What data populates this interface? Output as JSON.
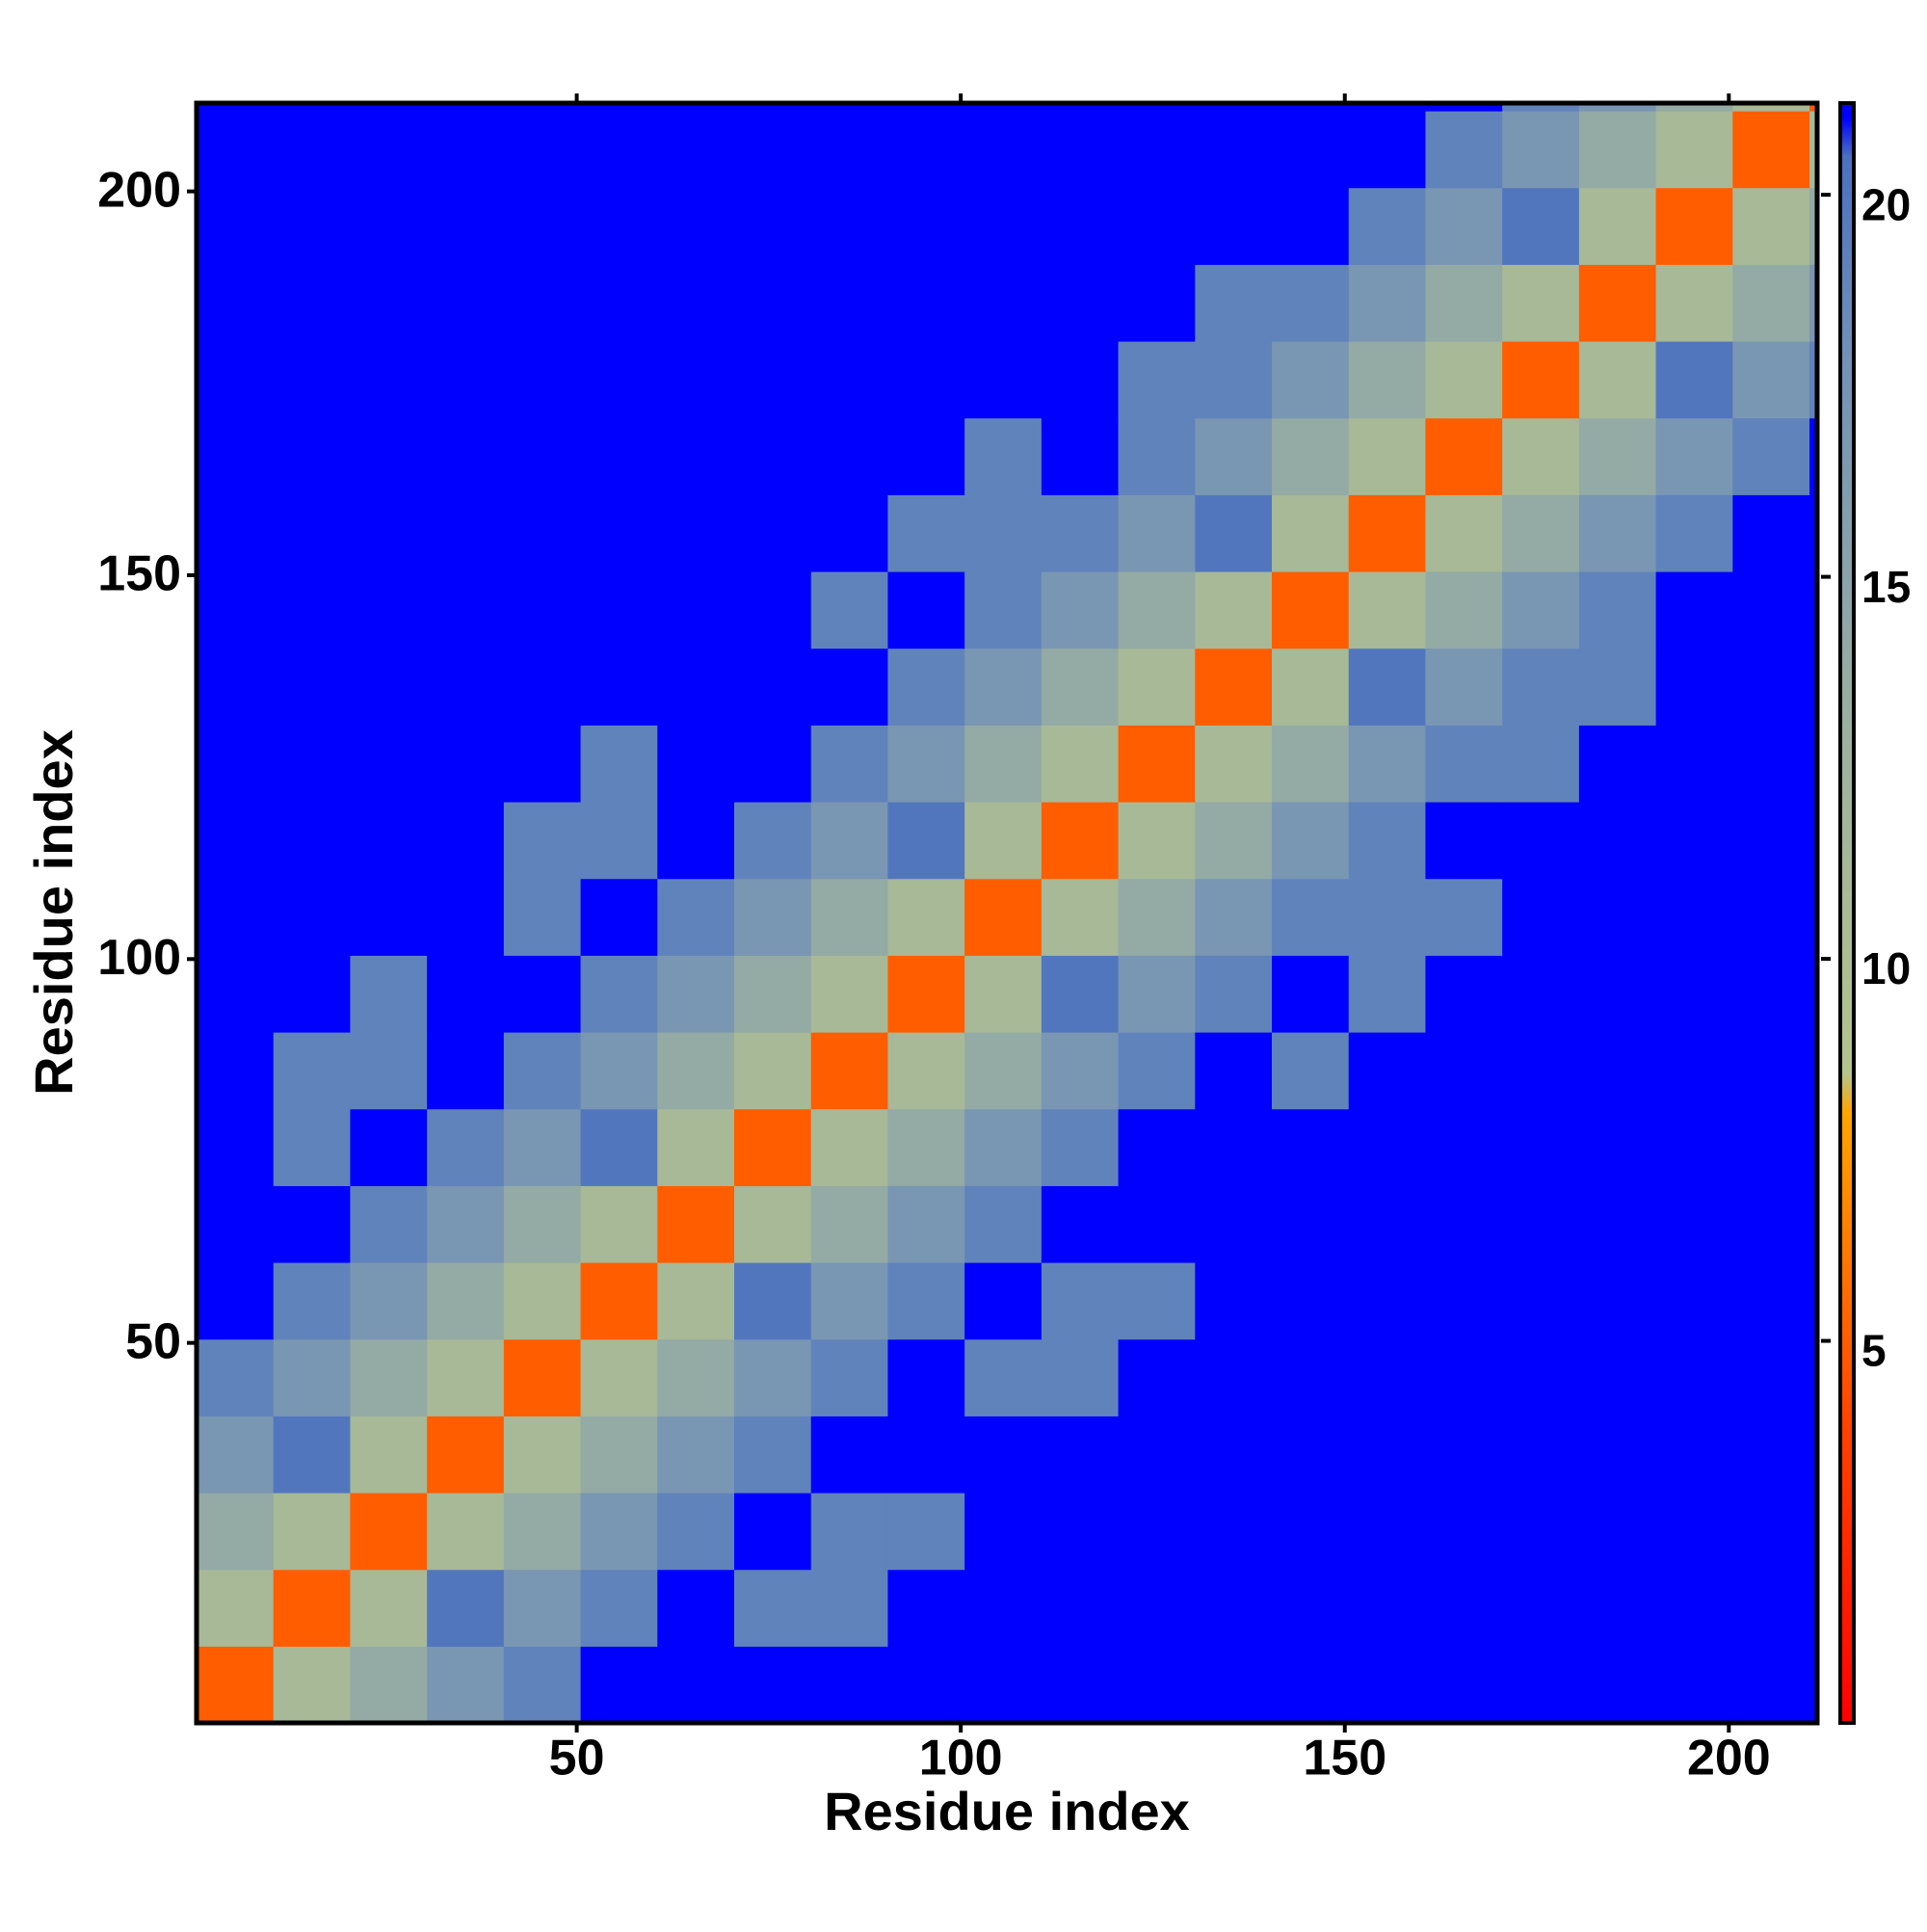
{
  "chart_data": {
    "type": "heatmap",
    "x_label": "Residue index",
    "y_label": "Residue index",
    "bins": [
      0.5,
      10.5,
      20.5,
      30.5,
      40.5,
      50.5,
      60.5,
      70.5,
      80.5,
      90.5,
      100.5,
      110.5,
      120.5,
      130.5,
      140.5,
      150.5,
      160.5,
      170.5,
      180.5,
      190.5,
      200.5,
      210.5,
      211.5
    ],
    "xlim": [
      0.5,
      211.5
    ],
    "ylim": [
      0.5,
      211.5
    ],
    "xticks": [
      50,
      100,
      150,
      200
    ],
    "yticks": [
      50,
      100,
      150,
      200
    ],
    "clim": [
      0,
      21.2
    ],
    "cticks": [
      5,
      10,
      15,
      20
    ],
    "colorscale": [
      [
        0,
        "#ff0000"
      ],
      [
        4,
        "#ff4500"
      ],
      [
        8,
        "#ffa500"
      ],
      [
        8.5,
        "#b4c48c"
      ],
      [
        13,
        "#9cb0a0"
      ],
      [
        18,
        "#7090b8"
      ],
      [
        20.5,
        "#4a70c0"
      ],
      [
        21,
        "#0000ff"
      ]
    ],
    "values": [
      [
        5,
        11,
        14,
        17,
        19,
        21,
        21,
        21,
        21,
        21,
        21,
        21,
        21,
        21,
        21,
        21,
        21,
        21,
        21,
        21,
        21,
        21
      ],
      [
        11,
        5,
        11,
        20,
        17,
        19,
        21,
        19,
        19,
        21,
        21,
        21,
        21,
        21,
        21,
        21,
        21,
        21,
        21,
        21,
        21,
        21
      ],
      [
        14,
        11,
        5,
        11,
        14,
        17,
        19,
        21,
        19,
        19,
        21,
        21,
        21,
        21,
        21,
        21,
        21,
        21,
        21,
        21,
        21,
        21
      ],
      [
        17,
        20,
        11,
        5,
        11,
        14,
        17,
        19,
        21,
        21,
        21,
        21,
        21,
        21,
        21,
        21,
        21,
        21,
        21,
        21,
        21,
        21
      ],
      [
        19,
        17,
        14,
        11,
        5,
        11,
        14,
        17,
        19,
        21,
        19,
        19,
        21,
        21,
        21,
        21,
        21,
        21,
        21,
        21,
        21,
        21
      ],
      [
        21,
        19,
        17,
        14,
        11,
        5,
        11,
        20,
        17,
        19,
        21,
        19,
        19,
        21,
        21,
        21,
        21,
        21,
        21,
        21,
        21,
        21
      ],
      [
        21,
        21,
        19,
        17,
        14,
        11,
        5,
        11,
        14,
        17,
        19,
        21,
        21,
        21,
        21,
        21,
        21,
        21,
        21,
        21,
        21,
        21
      ],
      [
        21,
        19,
        21,
        19,
        17,
        20,
        11,
        5,
        11,
        14,
        17,
        19,
        21,
        21,
        21,
        21,
        21,
        21,
        21,
        21,
        21,
        21
      ],
      [
        21,
        19,
        19,
        21,
        19,
        17,
        14,
        11,
        5,
        11,
        14,
        17,
        19,
        21,
        19,
        21,
        21,
        21,
        21,
        21,
        21,
        21
      ],
      [
        21,
        21,
        19,
        21,
        21,
        19,
        17,
        14,
        11,
        5,
        11,
        20,
        17,
        19,
        21,
        19,
        21,
        21,
        21,
        21,
        21,
        21
      ],
      [
        21,
        21,
        21,
        21,
        19,
        21,
        19,
        17,
        14,
        11,
        5,
        11,
        14,
        17,
        19,
        19,
        19,
        21,
        21,
        21,
        21,
        21
      ],
      [
        21,
        21,
        21,
        21,
        19,
        19,
        21,
        19,
        17,
        20,
        11,
        5,
        11,
        14,
        17,
        19,
        21,
        21,
        21,
        21,
        21,
        21
      ],
      [
        21,
        21,
        21,
        21,
        21,
        19,
        21,
        21,
        19,
        17,
        14,
        11,
        5,
        11,
        14,
        17,
        19,
        19,
        21,
        21,
        21,
        21
      ],
      [
        21,
        21,
        21,
        21,
        21,
        21,
        21,
        21,
        21,
        19,
        17,
        14,
        11,
        5,
        11,
        20,
        17,
        19,
        19,
        21,
        21,
        21
      ],
      [
        21,
        21,
        21,
        21,
        21,
        21,
        21,
        21,
        19,
        21,
        19,
        17,
        14,
        11,
        5,
        11,
        14,
        17,
        19,
        21,
        21,
        21
      ],
      [
        21,
        21,
        21,
        21,
        21,
        21,
        21,
        21,
        21,
        19,
        19,
        19,
        17,
        20,
        11,
        5,
        11,
        14,
        17,
        19,
        21,
        21
      ],
      [
        21,
        21,
        21,
        21,
        21,
        21,
        21,
        21,
        21,
        21,
        19,
        21,
        19,
        17,
        14,
        11,
        5,
        11,
        14,
        17,
        19,
        21
      ],
      [
        21,
        21,
        21,
        21,
        21,
        21,
        21,
        21,
        21,
        21,
        21,
        21,
        19,
        19,
        17,
        14,
        11,
        5,
        11,
        20,
        17,
        19
      ],
      [
        21,
        21,
        21,
        21,
        21,
        21,
        21,
        21,
        21,
        21,
        21,
        21,
        21,
        19,
        19,
        17,
        14,
        11,
        5,
        11,
        14,
        17
      ],
      [
        21,
        21,
        21,
        21,
        21,
        21,
        21,
        21,
        21,
        21,
        21,
        21,
        21,
        21,
        21,
        19,
        17,
        20,
        11,
        5,
        11,
        14
      ],
      [
        21,
        21,
        21,
        21,
        21,
        21,
        21,
        21,
        21,
        21,
        21,
        21,
        21,
        21,
        21,
        21,
        19,
        17,
        14,
        11,
        5,
        11
      ],
      [
        21,
        21,
        21,
        21,
        21,
        21,
        21,
        21,
        21,
        21,
        21,
        21,
        21,
        21,
        21,
        21,
        21,
        19,
        17,
        14,
        11,
        5
      ]
    ]
  }
}
